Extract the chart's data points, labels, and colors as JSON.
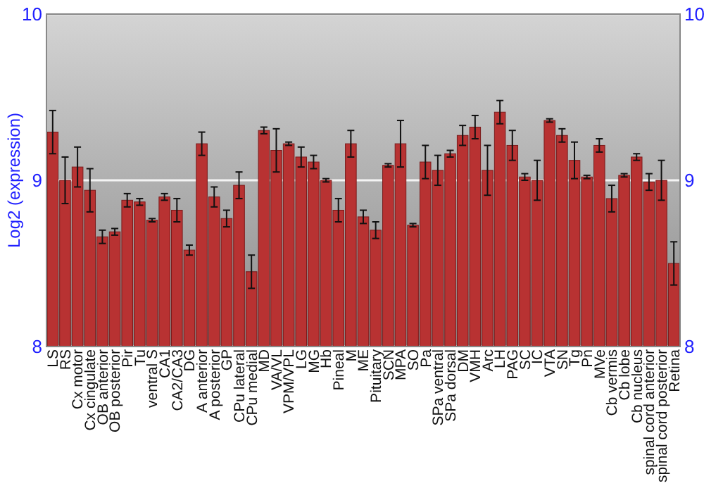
{
  "chart_data": {
    "type": "bar",
    "ylabel": "Log2 (expression)",
    "categories": [
      "LS",
      "RS",
      "Cx motor",
      "Cx cingulate",
      "OB anterior",
      "OB posterior",
      "Pir",
      "Tu",
      "ventral S",
      "CA1",
      "CA2/CA3",
      "DG",
      "A anterior",
      "A posterior",
      "GP",
      "CPu lateral",
      "CPu medial",
      "MD",
      "VA/VL",
      "VPM/VPL",
      "LG",
      "MG",
      "Hb",
      "Pineal",
      "M",
      "ME",
      "Pituitary",
      "SCN",
      "MPA",
      "SO",
      "Pa",
      "SPa ventral",
      "SPa dorsal",
      "DM",
      "VMH",
      "Arc",
      "LH",
      "PAG",
      "SC",
      "IC",
      "VTA",
      "SN",
      "Tg",
      "Pn",
      "MVe",
      "Cb vermis",
      "Cb lobe",
      "Cb nucleus",
      "spinal cord anterior",
      "spinal cord posterior",
      "Retina"
    ],
    "values": [
      9.29,
      9.0,
      9.08,
      8.94,
      8.66,
      8.69,
      8.88,
      8.87,
      8.76,
      8.9,
      8.82,
      8.58,
      9.22,
      8.9,
      8.77,
      8.97,
      8.45,
      9.3,
      9.18,
      9.22,
      9.14,
      9.11,
      9.0,
      8.82,
      9.22,
      8.78,
      8.7,
      9.09,
      9.22,
      8.73,
      9.11,
      9.06,
      9.16,
      9.27,
      9.32,
      9.06,
      9.41,
      9.21,
      9.02,
      9.0,
      9.36,
      9.27,
      9.12,
      9.02,
      9.21,
      8.89,
      9.03,
      9.14,
      8.99,
      9.0,
      8.5
    ],
    "errors": [
      0.13,
      0.14,
      0.12,
      0.13,
      0.04,
      0.02,
      0.04,
      0.02,
      0.01,
      0.02,
      0.07,
      0.03,
      0.07,
      0.06,
      0.05,
      0.08,
      0.1,
      0.02,
      0.13,
      0.01,
      0.06,
      0.04,
      0.01,
      0.07,
      0.08,
      0.04,
      0.05,
      0.01,
      0.14,
      0.01,
      0.1,
      0.09,
      0.02,
      0.06,
      0.07,
      0.15,
      0.07,
      0.09,
      0.02,
      0.12,
      0.01,
      0.04,
      0.11,
      0.01,
      0.04,
      0.08,
      0.01,
      0.02,
      0.05,
      0.12,
      0.13
    ],
    "color": "#b83232",
    "ylim": [
      8,
      10
    ],
    "yticks": [
      8,
      9,
      10
    ],
    "y2lim": [
      8,
      10
    ],
    "y2ticks": [
      8,
      9,
      10
    ],
    "grid": "y"
  }
}
